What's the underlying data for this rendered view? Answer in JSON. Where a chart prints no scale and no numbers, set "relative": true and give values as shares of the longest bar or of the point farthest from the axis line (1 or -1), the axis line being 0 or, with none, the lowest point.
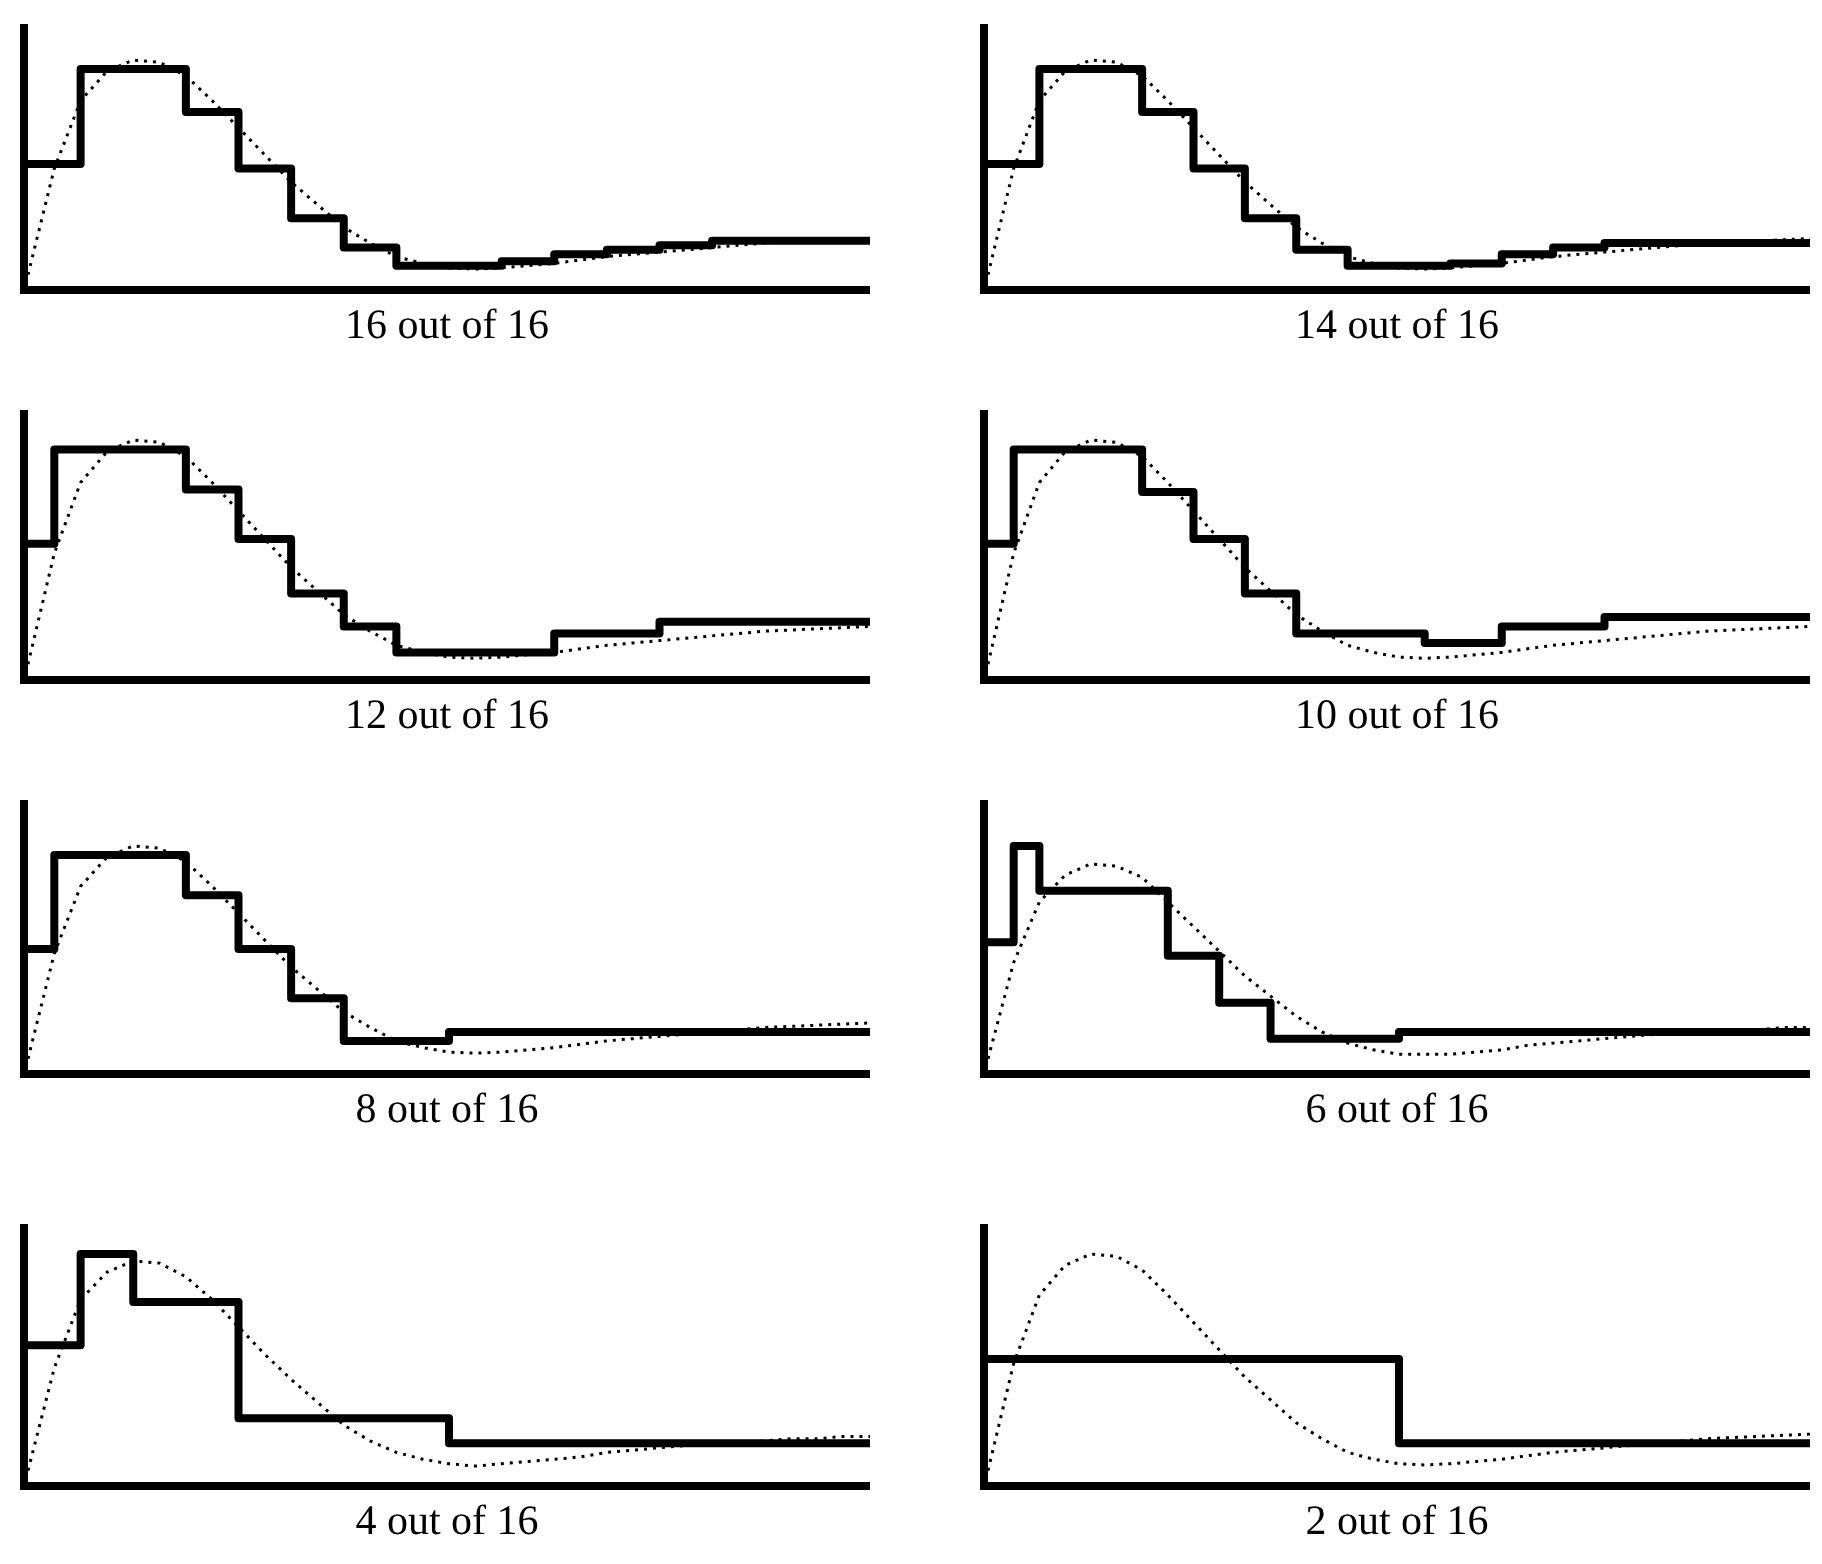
{
  "chart_data": [
    {
      "type": "line",
      "relative": true,
      "xlabel": "16 out of 16",
      "categories": [
        null,
        null,
        null,
        null,
        null,
        null,
        null,
        null,
        null,
        null,
        null,
        null,
        null,
        null,
        null,
        null,
        null,
        null,
        null,
        null,
        null,
        null,
        null,
        null,
        null,
        null,
        null,
        null,
        null,
        null,
        null,
        null,
        null
      ],
      "series": [
        {
          "type": "step",
          "color": "#000000",
          "values": [
            0.54,
            0.54,
            0.96,
            0.96,
            0.96,
            0.96,
            0.77,
            0.77,
            0.52,
            0.52,
            0.3,
            0.3,
            0.17,
            0.17,
            0.09,
            0.09,
            0.09,
            0.09,
            0.11,
            0.11,
            0.14,
            0.14,
            0.16,
            0.16,
            0.18,
            0.18,
            0.2,
            0.2,
            0.2,
            0.2,
            0.2,
            0.2,
            0.2
          ]
        },
        {
          "type": "line",
          "color": "#000000",
          "line_style": "dotted",
          "values": [
            0.05,
            0.52,
            0.82,
            0.95,
            1,
            0.99,
            0.93,
            0.82,
            0.7,
            0.58,
            0.46,
            0.36,
            0.26,
            0.19,
            0.13,
            0.1,
            0.08,
            0.075,
            0.08,
            0.09,
            0.1,
            0.115,
            0.13,
            0.14,
            0.15,
            0.16,
            0.17,
            0.18,
            0.19,
            0.195,
            0.2,
            0.205,
            0.21
          ]
        }
      ]
    },
    {
      "type": "line",
      "relative": true,
      "xlabel": "14 out of 16",
      "categories": [
        null,
        null,
        null,
        null,
        null,
        null,
        null,
        null,
        null,
        null,
        null,
        null,
        null,
        null,
        null,
        null,
        null,
        null,
        null,
        null,
        null,
        null,
        null,
        null,
        null,
        null,
        null,
        null,
        null,
        null,
        null,
        null,
        null
      ],
      "series": [
        {
          "type": "step",
          "color": "#000000",
          "values": [
            0.54,
            0.54,
            0.96,
            0.96,
            0.96,
            0.96,
            0.77,
            0.77,
            0.52,
            0.52,
            0.3,
            0.3,
            0.16,
            0.16,
            0.09,
            0.09,
            0.09,
            0.09,
            0.1,
            0.1,
            0.14,
            0.14,
            0.17,
            0.17,
            0.19,
            0.19,
            0.19,
            0.19,
            0.19,
            0.19,
            0.19,
            0.19,
            0.19
          ]
        },
        {
          "type": "line",
          "color": "#000000",
          "line_style": "dotted",
          "values": [
            0.05,
            0.52,
            0.82,
            0.95,
            1,
            0.99,
            0.93,
            0.82,
            0.7,
            0.58,
            0.46,
            0.36,
            0.26,
            0.19,
            0.13,
            0.1,
            0.08,
            0.075,
            0.08,
            0.09,
            0.1,
            0.115,
            0.13,
            0.14,
            0.15,
            0.16,
            0.17,
            0.18,
            0.19,
            0.195,
            0.2,
            0.205,
            0.21
          ]
        }
      ]
    },
    {
      "type": "line",
      "relative": true,
      "xlabel": "12 out of 16",
      "categories": [
        null,
        null,
        null,
        null,
        null,
        null,
        null,
        null,
        null,
        null,
        null,
        null,
        null,
        null,
        null,
        null,
        null,
        null,
        null,
        null,
        null,
        null,
        null,
        null,
        null,
        null,
        null,
        null,
        null,
        null,
        null,
        null,
        null
      ],
      "series": [
        {
          "type": "step",
          "color": "#000000",
          "values": [
            0.56,
            0.96,
            0.96,
            0.96,
            0.96,
            0.96,
            0.79,
            0.79,
            0.58,
            0.58,
            0.35,
            0.35,
            0.21,
            0.21,
            0.1,
            0.1,
            0.1,
            0.1,
            0.1,
            0.1,
            0.18,
            0.18,
            0.18,
            0.18,
            0.23,
            0.23,
            0.23,
            0.23,
            0.23,
            0.23,
            0.23,
            0.23,
            0.23
          ]
        },
        {
          "type": "line",
          "color": "#000000",
          "line_style": "dotted",
          "values": [
            0.05,
            0.52,
            0.82,
            0.95,
            1,
            0.99,
            0.93,
            0.82,
            0.7,
            0.58,
            0.46,
            0.36,
            0.26,
            0.19,
            0.13,
            0.1,
            0.08,
            0.075,
            0.08,
            0.09,
            0.1,
            0.115,
            0.13,
            0.14,
            0.15,
            0.16,
            0.17,
            0.18,
            0.19,
            0.195,
            0.2,
            0.205,
            0.21
          ]
        }
      ]
    },
    {
      "type": "line",
      "relative": true,
      "xlabel": "10 out of 16",
      "categories": [
        null,
        null,
        null,
        null,
        null,
        null,
        null,
        null,
        null,
        null,
        null,
        null,
        null,
        null,
        null,
        null,
        null,
        null,
        null,
        null,
        null,
        null,
        null,
        null,
        null,
        null,
        null,
        null,
        null,
        null,
        null,
        null,
        null
      ],
      "series": [
        {
          "type": "step",
          "color": "#000000",
          "values": [
            0.56,
            0.96,
            0.96,
            0.96,
            0.96,
            0.96,
            0.78,
            0.78,
            0.58,
            0.58,
            0.35,
            0.35,
            0.18,
            0.18,
            0.18,
            0.18,
            0.18,
            0.14,
            0.14,
            0.14,
            0.21,
            0.21,
            0.21,
            0.21,
            0.25,
            0.25,
            0.25,
            0.25,
            0.25,
            0.25,
            0.25,
            0.25,
            0.25
          ]
        },
        {
          "type": "line",
          "color": "#000000",
          "line_style": "dotted",
          "values": [
            0.05,
            0.52,
            0.82,
            0.95,
            1,
            0.99,
            0.93,
            0.82,
            0.7,
            0.58,
            0.46,
            0.36,
            0.26,
            0.19,
            0.13,
            0.1,
            0.08,
            0.075,
            0.08,
            0.09,
            0.1,
            0.115,
            0.13,
            0.14,
            0.15,
            0.16,
            0.17,
            0.18,
            0.19,
            0.195,
            0.2,
            0.205,
            0.21
          ]
        }
      ]
    },
    {
      "type": "line",
      "relative": true,
      "xlabel": "8 out of 16",
      "categories": [
        null,
        null,
        null,
        null,
        null,
        null,
        null,
        null,
        null,
        null,
        null,
        null,
        null,
        null,
        null,
        null,
        null,
        null,
        null,
        null,
        null,
        null,
        null,
        null,
        null,
        null,
        null,
        null,
        null,
        null,
        null,
        null,
        null
      ],
      "series": [
        {
          "type": "step",
          "color": "#000000",
          "values": [
            0.54,
            0.96,
            0.96,
            0.96,
            0.96,
            0.96,
            0.78,
            0.78,
            0.54,
            0.54,
            0.32,
            0.32,
            0.13,
            0.13,
            0.13,
            0.13,
            0.17,
            0.17,
            0.17,
            0.17,
            0.17,
            0.17,
            0.17,
            0.17,
            0.17,
            0.17,
            0.17,
            0.17,
            0.17,
            0.17,
            0.17,
            0.17,
            0.17
          ]
        },
        {
          "type": "line",
          "color": "#000000",
          "line_style": "dotted",
          "values": [
            0.05,
            0.52,
            0.82,
            0.95,
            1,
            0.99,
            0.93,
            0.82,
            0.7,
            0.58,
            0.46,
            0.36,
            0.26,
            0.19,
            0.13,
            0.1,
            0.08,
            0.075,
            0.08,
            0.09,
            0.1,
            0.115,
            0.13,
            0.14,
            0.15,
            0.16,
            0.17,
            0.18,
            0.19,
            0.195,
            0.2,
            0.205,
            0.21
          ]
        }
      ]
    },
    {
      "type": "line",
      "relative": true,
      "xlabel": "6 out of 16",
      "categories": [
        null,
        null,
        null,
        null,
        null,
        null,
        null,
        null,
        null,
        null,
        null,
        null,
        null,
        null,
        null,
        null,
        null,
        null,
        null,
        null,
        null,
        null,
        null,
        null,
        null,
        null,
        null,
        null,
        null,
        null,
        null,
        null,
        null
      ],
      "series": [
        {
          "type": "step",
          "color": "#000000",
          "values": [
            0.57,
            1,
            0.8,
            0.8,
            0.8,
            0.8,
            0.8,
            0.51,
            0.51,
            0.3,
            0.3,
            0.14,
            0.14,
            0.14,
            0.14,
            0.14,
            0.17,
            0.17,
            0.17,
            0.17,
            0.17,
            0.17,
            0.17,
            0.17,
            0.17,
            0.17,
            0.17,
            0.17,
            0.17,
            0.17,
            0.17,
            0.17,
            0.17
          ]
        },
        {
          "type": "line",
          "color": "#000000",
          "line_style": "dotted",
          "values": [
            0.05,
            0.48,
            0.75,
            0.87,
            0.92,
            0.91,
            0.86,
            0.75,
            0.64,
            0.53,
            0.42,
            0.33,
            0.24,
            0.17,
            0.12,
            0.09,
            0.07,
            0.07,
            0.07,
            0.08,
            0.09,
            0.11,
            0.12,
            0.13,
            0.14,
            0.15,
            0.16,
            0.17,
            0.17,
            0.18,
            0.18,
            0.19,
            0.19
          ]
        }
      ]
    },
    {
      "type": "line",
      "relative": true,
      "xlabel": "4 out of 16",
      "categories": [
        null,
        null,
        null,
        null,
        null,
        null,
        null,
        null,
        null,
        null,
        null,
        null,
        null,
        null,
        null,
        null,
        null,
        null,
        null,
        null,
        null,
        null,
        null,
        null,
        null,
        null,
        null,
        null,
        null,
        null,
        null,
        null,
        null
      ],
      "series": [
        {
          "type": "step",
          "color": "#000000",
          "values": [
            0.6,
            0.6,
            1,
            1,
            0.79,
            0.79,
            0.79,
            0.79,
            0.28,
            0.28,
            0.28,
            0.28,
            0.28,
            0.28,
            0.28,
            0.28,
            0.17,
            0.17,
            0.17,
            0.17,
            0.17,
            0.17,
            0.17,
            0.17,
            0.17,
            0.17,
            0.17,
            0.17,
            0.17,
            0.17,
            0.17,
            0.17,
            0.17
          ]
        },
        {
          "type": "line",
          "color": "#000000",
          "line_style": "dotted",
          "values": [
            0.05,
            0.5,
            0.8,
            0.92,
            0.97,
            0.96,
            0.9,
            0.8,
            0.68,
            0.56,
            0.45,
            0.35,
            0.25,
            0.18,
            0.13,
            0.1,
            0.08,
            0.07,
            0.08,
            0.09,
            0.1,
            0.11,
            0.13,
            0.14,
            0.15,
            0.16,
            0.16,
            0.17,
            0.18,
            0.19,
            0.19,
            0.2,
            0.2
          ]
        }
      ]
    },
    {
      "type": "line",
      "relative": true,
      "xlabel": "2 out of 16",
      "categories": [
        null,
        null,
        null,
        null,
        null,
        null,
        null,
        null,
        null,
        null,
        null,
        null,
        null,
        null,
        null,
        null,
        null,
        null,
        null,
        null,
        null,
        null,
        null,
        null,
        null,
        null,
        null,
        null,
        null,
        null,
        null,
        null,
        null
      ],
      "series": [
        {
          "type": "step",
          "color": "#000000",
          "values": [
            0.54,
            0.54,
            0.54,
            0.54,
            0.54,
            0.54,
            0.54,
            0.54,
            0.54,
            0.54,
            0.54,
            0.54,
            0.54,
            0.54,
            0.54,
            0.54,
            0.17,
            0.17,
            0.17,
            0.17,
            0.17,
            0.17,
            0.17,
            0.17,
            0.17,
            0.17,
            0.17,
            0.17,
            0.17,
            0.17,
            0.17,
            0.17,
            0.17
          ]
        },
        {
          "type": "line",
          "color": "#000000",
          "line_style": "dotted",
          "values": [
            0.05,
            0.52,
            0.82,
            0.95,
            1,
            0.99,
            0.93,
            0.82,
            0.7,
            0.58,
            0.46,
            0.36,
            0.26,
            0.19,
            0.13,
            0.1,
            0.08,
            0.075,
            0.08,
            0.09,
            0.1,
            0.115,
            0.13,
            0.14,
            0.15,
            0.16,
            0.17,
            0.18,
            0.19,
            0.195,
            0.2,
            0.205,
            0.21
          ]
        }
      ]
    }
  ]
}
